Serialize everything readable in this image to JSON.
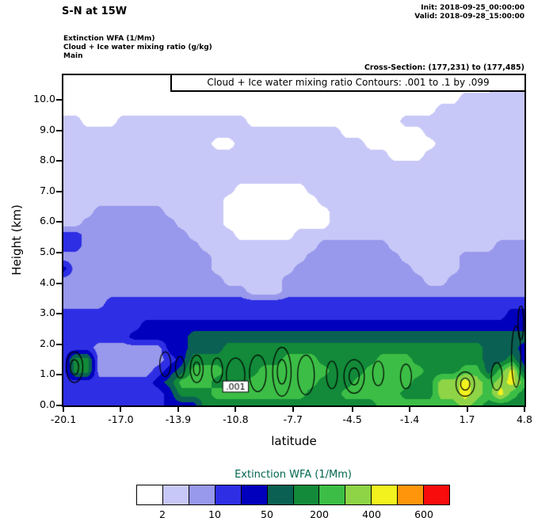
{
  "header": {
    "title": "S-N at 15W",
    "init": "Init: 2018-09-25_00:00:00",
    "valid": "Valid: 2018-09-28_15:00:00",
    "field_lines": [
      "Extinction WFA  (1/Mm)",
      "Cloud + Ice water mixing ratio  (g/kg)",
      "Main"
    ],
    "cross_section": "Cross-Section: (177,231) to (177,485)"
  },
  "plot": {
    "contour_info": "Cloud + Ice water mixing ratio Contours: .001 to .1 by .099"
  },
  "chart_data": {
    "type": "heatmap",
    "title": "S-N at 15W",
    "xlabel": "latitude",
    "ylabel": "Height (km)",
    "xlim": [
      -20.1,
      4.8
    ],
    "ylim": [
      0,
      10.8
    ],
    "x_ticks": [
      "-20.1",
      "-17.0",
      "-13.9",
      "-10.8",
      "-7.7",
      "-4.5",
      "-1.4",
      "1.7",
      "4.8"
    ],
    "x_tick_values": [
      -20.1,
      -17.0,
      -13.9,
      -10.8,
      -7.7,
      -4.5,
      -1.4,
      1.7,
      4.8
    ],
    "y_ticks": [
      "0.0",
      "1.0",
      "2.0",
      "3.0",
      "4.0",
      "5.0",
      "6.0",
      "7.0",
      "8.0",
      "9.0",
      "10.0"
    ],
    "y_tick_values": [
      0,
      1,
      2,
      3,
      4,
      5,
      6,
      7,
      8,
      9,
      10
    ],
    "colorbar_tick_labels": [
      "2",
      "10",
      "50",
      "200",
      "400",
      "600"
    ],
    "levels_colors": [
      "#ffffff",
      "#c8c8f8",
      "#9898ec",
      "#2e2ee4",
      "#0000bd",
      "#0a6153",
      "#128a39",
      "#3cbe46",
      "#8ed446",
      "#f2f21e",
      "#ff950a",
      "#f80c0c"
    ],
    "grid": {
      "cols": 40,
      "rows": 30,
      "rle_rows": [
        [
          [
            40,
            0
          ]
        ],
        [
          [
            37,
            0
          ],
          [
            3,
            1
          ]
        ],
        [
          [
            34,
            0
          ],
          [
            6,
            1
          ]
        ],
        [
          [
            32,
            0
          ],
          [
            8,
            1
          ]
        ],
        [
          [
            2,
            1
          ],
          [
            3,
            0
          ],
          [
            11,
            1
          ],
          [
            13,
            0
          ],
          [
            11,
            1
          ]
        ],
        [
          [
            24,
            1
          ],
          [
            7,
            0
          ],
          [
            9,
            1
          ]
        ],
        [
          [
            13,
            1
          ],
          [
            2,
            0
          ],
          [
            11,
            1
          ],
          [
            6,
            0
          ],
          [
            8,
            1
          ]
        ],
        [
          [
            28,
            1
          ],
          [
            3,
            0
          ],
          [
            9,
            1
          ]
        ],
        [
          [
            40,
            1
          ]
        ],
        [
          [
            40,
            1
          ]
        ],
        [
          [
            15,
            1
          ],
          [
            6,
            0
          ],
          [
            19,
            1
          ]
        ],
        [
          [
            14,
            1
          ],
          [
            8,
            0
          ],
          [
            18,
            1
          ]
        ],
        [
          [
            3,
            1
          ],
          [
            6,
            2
          ],
          [
            5,
            1
          ],
          [
            9,
            0
          ],
          [
            17,
            1
          ]
        ],
        [
          [
            2,
            1
          ],
          [
            8,
            2
          ],
          [
            4,
            1
          ],
          [
            9,
            0
          ],
          [
            17,
            1
          ]
        ],
        [
          [
            2,
            3
          ],
          [
            9,
            2
          ],
          [
            4,
            1
          ],
          [
            5,
            0
          ],
          [
            20,
            1
          ]
        ],
        [
          [
            2,
            3
          ],
          [
            10,
            2
          ],
          [
            10,
            1
          ],
          [
            6,
            2
          ],
          [
            9,
            1
          ],
          [
            3,
            2
          ]
        ],
        [
          [
            13,
            2
          ],
          [
            8,
            1
          ],
          [
            8,
            2
          ],
          [
            5,
            1
          ],
          [
            6,
            2
          ]
        ],
        [
          [
            1,
            4
          ],
          [
            12,
            2
          ],
          [
            7,
            1
          ],
          [
            10,
            2
          ],
          [
            4,
            1
          ],
          [
            6,
            2
          ]
        ],
        [
          [
            14,
            2
          ],
          [
            5,
            1
          ],
          [
            12,
            2
          ],
          [
            2,
            1
          ],
          [
            7,
            2
          ]
        ],
        [
          [
            16,
            2
          ],
          [
            3,
            1
          ],
          [
            21,
            2
          ]
        ],
        [
          [
            4,
            2
          ],
          [
            36,
            3
          ]
        ],
        [
          [
            38,
            3
          ],
          [
            2,
            4
          ]
        ],
        [
          [
            7,
            3
          ],
          [
            33,
            4
          ]
        ],
        [
          [
            6,
            3
          ],
          [
            5,
            4
          ],
          [
            29,
            5
          ]
        ],
        [
          [
            3,
            3
          ],
          [
            6,
            2
          ],
          [
            2,
            4
          ],
          [
            3,
            5
          ],
          [
            22,
            6
          ],
          [
            3,
            5
          ],
          [
            1,
            4
          ]
        ],
        [
          [
            1,
            3
          ],
          [
            2,
            6
          ],
          [
            6,
            2
          ],
          [
            1,
            3
          ],
          [
            1,
            4
          ],
          [
            8,
            6
          ],
          [
            3,
            7
          ],
          [
            5,
            6
          ],
          [
            3,
            7
          ],
          [
            6,
            6
          ],
          [
            2,
            5
          ],
          [
            1,
            6
          ],
          [
            1,
            4
          ]
        ],
        [
          [
            1,
            3
          ],
          [
            2,
            6
          ],
          [
            5,
            2
          ],
          [
            1,
            3
          ],
          [
            1,
            4
          ],
          [
            1,
            5
          ],
          [
            3,
            7
          ],
          [
            3,
            6
          ],
          [
            6,
            7
          ],
          [
            3,
            6
          ],
          [
            5,
            7
          ],
          [
            3,
            6
          ],
          [
            2,
            7
          ],
          [
            1,
            5
          ],
          [
            1,
            7
          ],
          [
            1,
            9
          ],
          [
            1,
            5
          ]
        ],
        [
          [
            8,
            3
          ],
          [
            1,
            4
          ],
          [
            1,
            5
          ],
          [
            3,
            7
          ],
          [
            3,
            6
          ],
          [
            6,
            7
          ],
          [
            3,
            6
          ],
          [
            5,
            7
          ],
          [
            2,
            6
          ],
          [
            2,
            8
          ],
          [
            1,
            9
          ],
          [
            1,
            8
          ],
          [
            1,
            7
          ],
          [
            1,
            8
          ],
          [
            1,
            9
          ],
          [
            1,
            7
          ]
        ],
        [
          [
            9,
            3
          ],
          [
            1,
            4
          ],
          [
            3,
            6
          ],
          [
            8,
            7
          ],
          [
            3,
            6
          ],
          [
            5,
            7
          ],
          [
            3,
            6
          ],
          [
            2,
            8
          ],
          [
            1,
            9
          ],
          [
            1,
            8
          ],
          [
            1,
            7
          ],
          [
            1,
            9
          ],
          [
            1,
            7
          ],
          [
            1,
            6
          ]
        ],
        [
          [
            9,
            3
          ],
          [
            3,
            4
          ],
          [
            15,
            6
          ],
          [
            7,
            7
          ],
          [
            1,
            8
          ],
          [
            1,
            7
          ],
          [
            4,
            6
          ]
        ]
      ]
    },
    "cloud_contours": {
      "label": ".001",
      "label_pos": {
        "lat": -10.8,
        "km": 0.62
      },
      "ellipses": [
        {
          "cx": -19.5,
          "cy": 1.25,
          "rx": 0.45,
          "ry": 0.5,
          "inner": true
        },
        {
          "cx": -14.6,
          "cy": 1.35,
          "rx": 0.3,
          "ry": 0.4,
          "inner": false
        },
        {
          "cx": -13.8,
          "cy": 1.25,
          "rx": 0.25,
          "ry": 0.35,
          "inner": false
        },
        {
          "cx": -12.9,
          "cy": 1.2,
          "rx": 0.35,
          "ry": 0.45,
          "inner": true
        },
        {
          "cx": -11.8,
          "cy": 1.15,
          "rx": 0.3,
          "ry": 0.4,
          "inner": false
        },
        {
          "cx": -10.8,
          "cy": 1.0,
          "rx": 0.5,
          "ry": 0.55,
          "inner": false
        },
        {
          "cx": -9.6,
          "cy": 1.05,
          "rx": 0.45,
          "ry": 0.6,
          "inner": false
        },
        {
          "cx": -8.3,
          "cy": 1.1,
          "rx": 0.5,
          "ry": 0.8,
          "inner": true
        },
        {
          "cx": -7.0,
          "cy": 1.0,
          "rx": 0.45,
          "ry": 0.65,
          "inner": false
        },
        {
          "cx": -5.6,
          "cy": 1.0,
          "rx": 0.3,
          "ry": 0.45,
          "inner": false
        },
        {
          "cx": -4.4,
          "cy": 0.95,
          "rx": 0.55,
          "ry": 0.55,
          "inner": true
        },
        {
          "cx": -3.1,
          "cy": 1.05,
          "rx": 0.3,
          "ry": 0.4,
          "inner": false
        },
        {
          "cx": -1.6,
          "cy": 0.95,
          "rx": 0.3,
          "ry": 0.4,
          "inner": false
        },
        {
          "cx": 1.6,
          "cy": 0.7,
          "rx": 0.5,
          "ry": 0.4,
          "inner": true
        },
        {
          "cx": 3.3,
          "cy": 0.95,
          "rx": 0.3,
          "ry": 0.45,
          "inner": false
        },
        {
          "cx": 4.35,
          "cy": 1.6,
          "rx": 0.25,
          "ry": 1.0,
          "inner": false
        },
        {
          "cx": 4.6,
          "cy": 2.7,
          "rx": 0.15,
          "ry": 0.55,
          "inner": false
        }
      ]
    }
  },
  "colorbar": {
    "title": "Extinction WFA  (1/Mm)",
    "colors": [
      "#ffffff",
      "#c8c8f8",
      "#9898ec",
      "#2e2ee4",
      "#0000bd",
      "#0a6153",
      "#128a39",
      "#3cbe46",
      "#8ed446",
      "#f2f21e",
      "#ff950a",
      "#f80c0c"
    ],
    "labels": [
      "2",
      "10",
      "50",
      "200",
      "400",
      "600"
    ],
    "label_edge_indices": [
      1,
      3,
      5,
      7,
      9,
      11
    ]
  }
}
